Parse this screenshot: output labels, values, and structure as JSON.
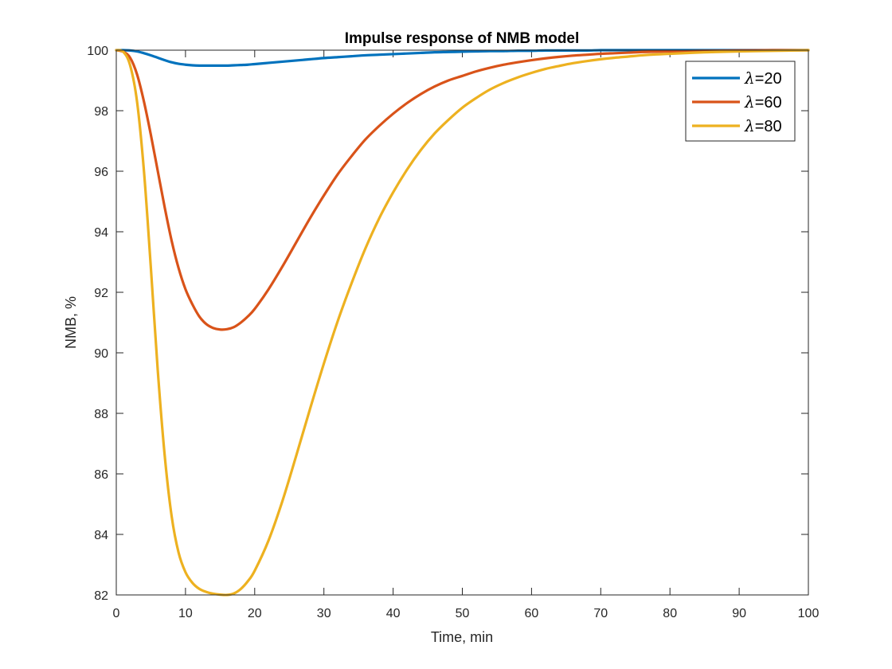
{
  "chart_data": {
    "type": "line",
    "title": "Impulse response of NMB model",
    "xlabel": "Time, min",
    "ylabel": "NMB, %",
    "xlim": [
      0,
      100
    ],
    "ylim": [
      82,
      100
    ],
    "xticks": [
      0,
      10,
      20,
      30,
      40,
      50,
      60,
      70,
      80,
      90,
      100
    ],
    "yticks": [
      82,
      84,
      86,
      88,
      90,
      92,
      94,
      96,
      98,
      100
    ],
    "grid": false,
    "legend_location": "top-right",
    "x": [
      0,
      1,
      2,
      3,
      4,
      5,
      6,
      7,
      8,
      9,
      10,
      11,
      12,
      13,
      14,
      15,
      16,
      17,
      18,
      19,
      20,
      22,
      24,
      26,
      28,
      30,
      32,
      34,
      36,
      38,
      40,
      42,
      44,
      46,
      48,
      50,
      52,
      54,
      56,
      58,
      60,
      62,
      64,
      66,
      68,
      70,
      72,
      74,
      76,
      78,
      80,
      85,
      90,
      95,
      100
    ],
    "series": [
      {
        "name": "λ=20",
        "lambda_symbol": "λ",
        "legend_value": "=20",
        "color": "#0072BD",
        "values": [
          100,
          100,
          99.99,
          99.96,
          99.9,
          99.83,
          99.75,
          99.67,
          99.6,
          99.55,
          99.52,
          99.5,
          99.49,
          99.49,
          99.49,
          99.49,
          99.49,
          99.5,
          99.51,
          99.52,
          99.54,
          99.58,
          99.62,
          99.66,
          99.7,
          99.74,
          99.77,
          99.8,
          99.83,
          99.85,
          99.87,
          99.89,
          99.91,
          99.93,
          99.94,
          99.95,
          99.96,
          99.97,
          99.97,
          99.98,
          99.98,
          99.99,
          99.99,
          99.99,
          99.99,
          100,
          100,
          100,
          100,
          100,
          100,
          100,
          100,
          100,
          100
        ]
      },
      {
        "name": "λ=60",
        "lambda_symbol": "λ",
        "legend_value": "=60",
        "color": "#D95319",
        "values": [
          100,
          99.95,
          99.75,
          99.2,
          98.3,
          97.2,
          96.0,
          94.8,
          93.7,
          92.8,
          92.1,
          91.6,
          91.2,
          90.95,
          90.82,
          90.77,
          90.78,
          90.85,
          91.0,
          91.2,
          91.45,
          92.1,
          92.85,
          93.65,
          94.45,
          95.2,
          95.9,
          96.5,
          97.05,
          97.5,
          97.9,
          98.25,
          98.55,
          98.8,
          99.0,
          99.15,
          99.3,
          99.42,
          99.52,
          99.6,
          99.67,
          99.73,
          99.78,
          99.82,
          99.85,
          99.88,
          99.9,
          99.92,
          99.94,
          99.95,
          99.96,
          99.98,
          99.99,
          100,
          100
        ]
      },
      {
        "name": "λ=80",
        "lambda_symbol": "λ",
        "legend_value": "=80",
        "color": "#EDB120",
        "values": [
          100,
          99.95,
          99.5,
          98.3,
          96.0,
          92.8,
          89.4,
          86.6,
          84.6,
          83.4,
          82.75,
          82.4,
          82.2,
          82.1,
          82.04,
          82.01,
          82.0,
          82.05,
          82.2,
          82.45,
          82.8,
          83.8,
          85.1,
          86.6,
          88.15,
          89.65,
          91.05,
          92.3,
          93.45,
          94.45,
          95.3,
          96.05,
          96.7,
          97.25,
          97.7,
          98.1,
          98.42,
          98.7,
          98.92,
          99.1,
          99.25,
          99.38,
          99.48,
          99.57,
          99.64,
          99.7,
          99.75,
          99.79,
          99.83,
          99.86,
          99.88,
          99.93,
          99.96,
          99.98,
          100
        ]
      }
    ]
  }
}
